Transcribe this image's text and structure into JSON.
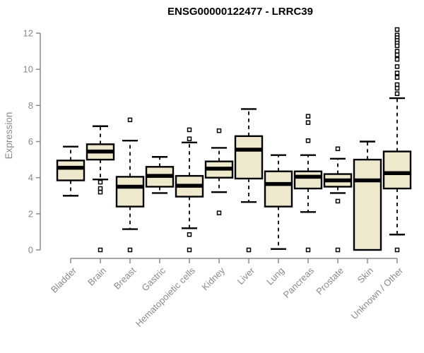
{
  "header": {
    "title": "ENSG00000122477 - LRRC39"
  },
  "chart_data": {
    "type": "boxplot",
    "title": "ENSG00000122477 - LRRC39",
    "xlabel": "",
    "ylabel": "Expression",
    "ylim": [
      0,
      12.3
    ],
    "yticks": [
      0,
      2,
      4,
      6,
      8,
      10,
      12
    ],
    "grid": false,
    "legend": false,
    "colors": {
      "box_fill": "#EEE8CD",
      "box_stroke": "#000000",
      "median": "#000000",
      "whisker": "#000000",
      "outlier_stroke": "#000000",
      "outlier_fill": "#FFFFFF",
      "axis": "#8A8A8A",
      "tick_text": "#8A8A8A",
      "title_color": "#000000"
    },
    "categories": [
      "Bladder",
      "Brain",
      "Breast",
      "Gastric",
      "Hematopoietic cells",
      "Kidney",
      "Liver",
      "Lung",
      "Pancreas",
      "Prostate",
      "Skin",
      "Unknown / Other"
    ],
    "boxes": [
      {
        "label": "Bladder",
        "whislo": 3.0,
        "q1": 3.85,
        "med": 4.55,
        "q3": 4.95,
        "whishi": 5.72,
        "outliers": []
      },
      {
        "label": "Brain",
        "whislo": 3.9,
        "q1": 5.0,
        "med": 5.45,
        "q3": 5.85,
        "whishi": 6.85,
        "outliers": [
          3.75,
          3.4,
          3.2,
          0
        ]
      },
      {
        "label": "Breast",
        "whislo": 1.15,
        "q1": 2.4,
        "med": 3.5,
        "q3": 4.05,
        "whishi": 6.05,
        "outliers": [
          7.2,
          0
        ]
      },
      {
        "label": "Gastric",
        "whislo": 3.15,
        "q1": 3.5,
        "med": 4.1,
        "q3": 4.6,
        "whishi": 5.15,
        "outliers": []
      },
      {
        "label": "Hematopoietic cells",
        "whislo": 1.2,
        "q1": 2.95,
        "med": 3.55,
        "q3": 4.1,
        "whishi": 5.95,
        "outliers": [
          6.65,
          6.15,
          0.85,
          0
        ]
      },
      {
        "label": "Kidney",
        "whislo": 3.2,
        "q1": 4.0,
        "med": 4.5,
        "q3": 4.9,
        "whishi": 5.65,
        "outliers": [
          6.6,
          2.05
        ]
      },
      {
        "label": "Liver",
        "whislo": 2.65,
        "q1": 3.95,
        "med": 5.55,
        "q3": 6.3,
        "whishi": 7.8,
        "outliers": [
          0
        ]
      },
      {
        "label": "Lung",
        "whislo": 0.05,
        "q1": 2.4,
        "med": 3.65,
        "q3": 4.35,
        "whishi": 5.25,
        "outliers": []
      },
      {
        "label": "Pancreas",
        "whislo": 2.1,
        "q1": 3.4,
        "med": 4.05,
        "q3": 4.35,
        "whishi": 5.25,
        "outliers": [
          7.4,
          7.05,
          6.05,
          0
        ]
      },
      {
        "label": "Prostate",
        "whislo": 3.15,
        "q1": 3.5,
        "med": 3.85,
        "q3": 4.2,
        "whishi": 5.05,
        "outliers": [
          5.6,
          2.7,
          0
        ]
      },
      {
        "label": "Skin",
        "whislo": 0.0,
        "q1": 0.0,
        "med": 3.85,
        "q3": 5.0,
        "whishi": 6.0,
        "outliers": []
      },
      {
        "label": "Unknown / Other",
        "whislo": 0.85,
        "q1": 3.4,
        "med": 4.25,
        "q3": 5.45,
        "whishi": 8.4,
        "outliers": [
          12.2,
          11.9,
          11.75,
          11.6,
          11.45,
          11.3,
          11.0,
          10.8,
          10.55,
          10.15,
          9.8,
          9.55,
          9.15,
          8.95,
          8.65,
          0
        ]
      }
    ]
  }
}
